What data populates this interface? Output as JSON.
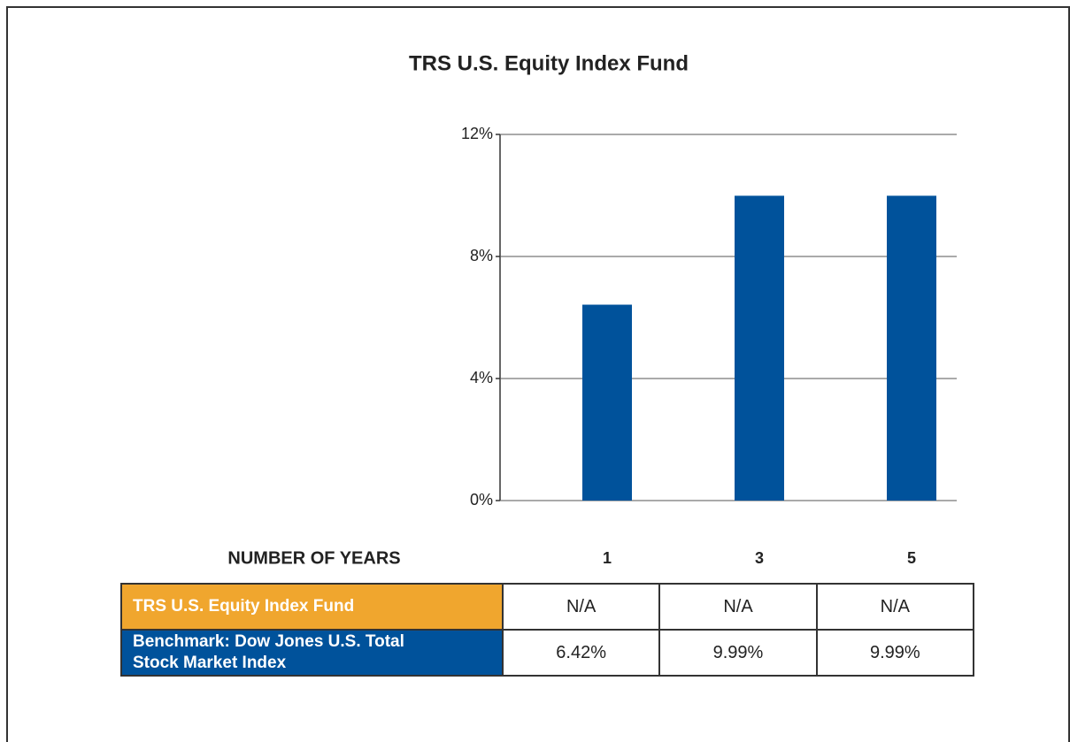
{
  "chart_data": {
    "type": "bar",
    "title": "TRS U.S. Equity Index Fund",
    "x_label": "NUMBER OF YEARS",
    "categories": [
      "1",
      "3",
      "5"
    ],
    "series": [
      {
        "name": "TRS U.S. Equity Index Fund",
        "color": "#f0a62e",
        "values": [
          null,
          null,
          null
        ],
        "value_labels": [
          "N/A",
          "N/A",
          "N/A"
        ]
      },
      {
        "name": "Benchmark: Dow Jones U.S. Total Stock Market Index",
        "color": "#00529b",
        "values": [
          6.42,
          9.99,
          9.99
        ],
        "value_labels": [
          "6.42%",
          "9.99%",
          "9.99%"
        ]
      }
    ],
    "ylim": [
      0,
      12
    ],
    "yticks": [
      {
        "value": 0,
        "label": "0%"
      },
      {
        "value": 4,
        "label": "4%"
      },
      {
        "value": 8,
        "label": "8%"
      },
      {
        "value": 12,
        "label": "12%"
      }
    ],
    "grid": true
  }
}
